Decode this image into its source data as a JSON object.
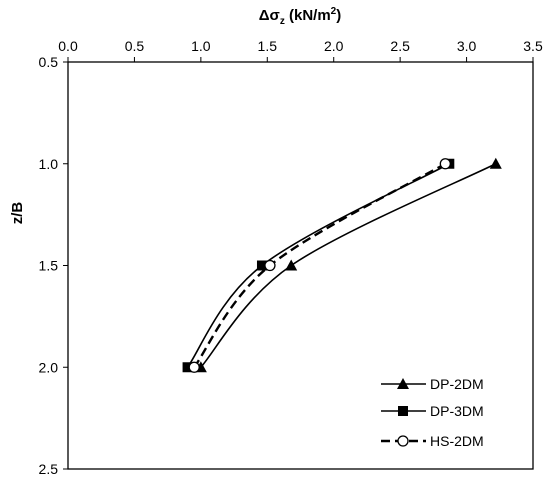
{
  "chart_data": {
    "type": "line",
    "title": "",
    "xlabel": {
      "prefix": "Δσ",
      "sub": "z",
      "unit_open": " (kN/m",
      "sup": "2",
      "unit_close": ")"
    },
    "ylabel": "z/B",
    "x_axis_position": "top",
    "y_axis_inverted": true,
    "xlim": [
      0.0,
      3.5
    ],
    "ylim": [
      0.5,
      2.5
    ],
    "x_ticks": [
      0.0,
      0.5,
      1.0,
      1.5,
      2.0,
      2.5,
      3.0,
      3.5
    ],
    "x_tick_labels": [
      "0.0",
      "0.5",
      "1.0",
      "1.5",
      "2.0",
      "2.5",
      "3.0",
      "3.5"
    ],
    "y_ticks": [
      0.5,
      1.0,
      1.5,
      2.0,
      2.5
    ],
    "y_tick_labels": [
      "0.5",
      "1.0",
      "1.5",
      "2.0",
      "2.5"
    ],
    "grid": false,
    "legend_position": "bottom-right",
    "series": [
      {
        "name": "DP-2DM",
        "marker": "triangle",
        "line": "solid",
        "x": [
          3.22,
          1.68,
          1.0
        ],
        "y": [
          1.0,
          1.5,
          2.0
        ]
      },
      {
        "name": "DP-3DM",
        "marker": "square",
        "line": "solid",
        "x": [
          2.87,
          1.46,
          0.9
        ],
        "y": [
          1.0,
          1.5,
          2.0
        ]
      },
      {
        "name": "HS-2DM",
        "marker": "circle-open",
        "line": "dashed",
        "x": [
          2.84,
          1.52,
          0.95
        ],
        "y": [
          1.0,
          1.5,
          2.0
        ]
      }
    ]
  }
}
